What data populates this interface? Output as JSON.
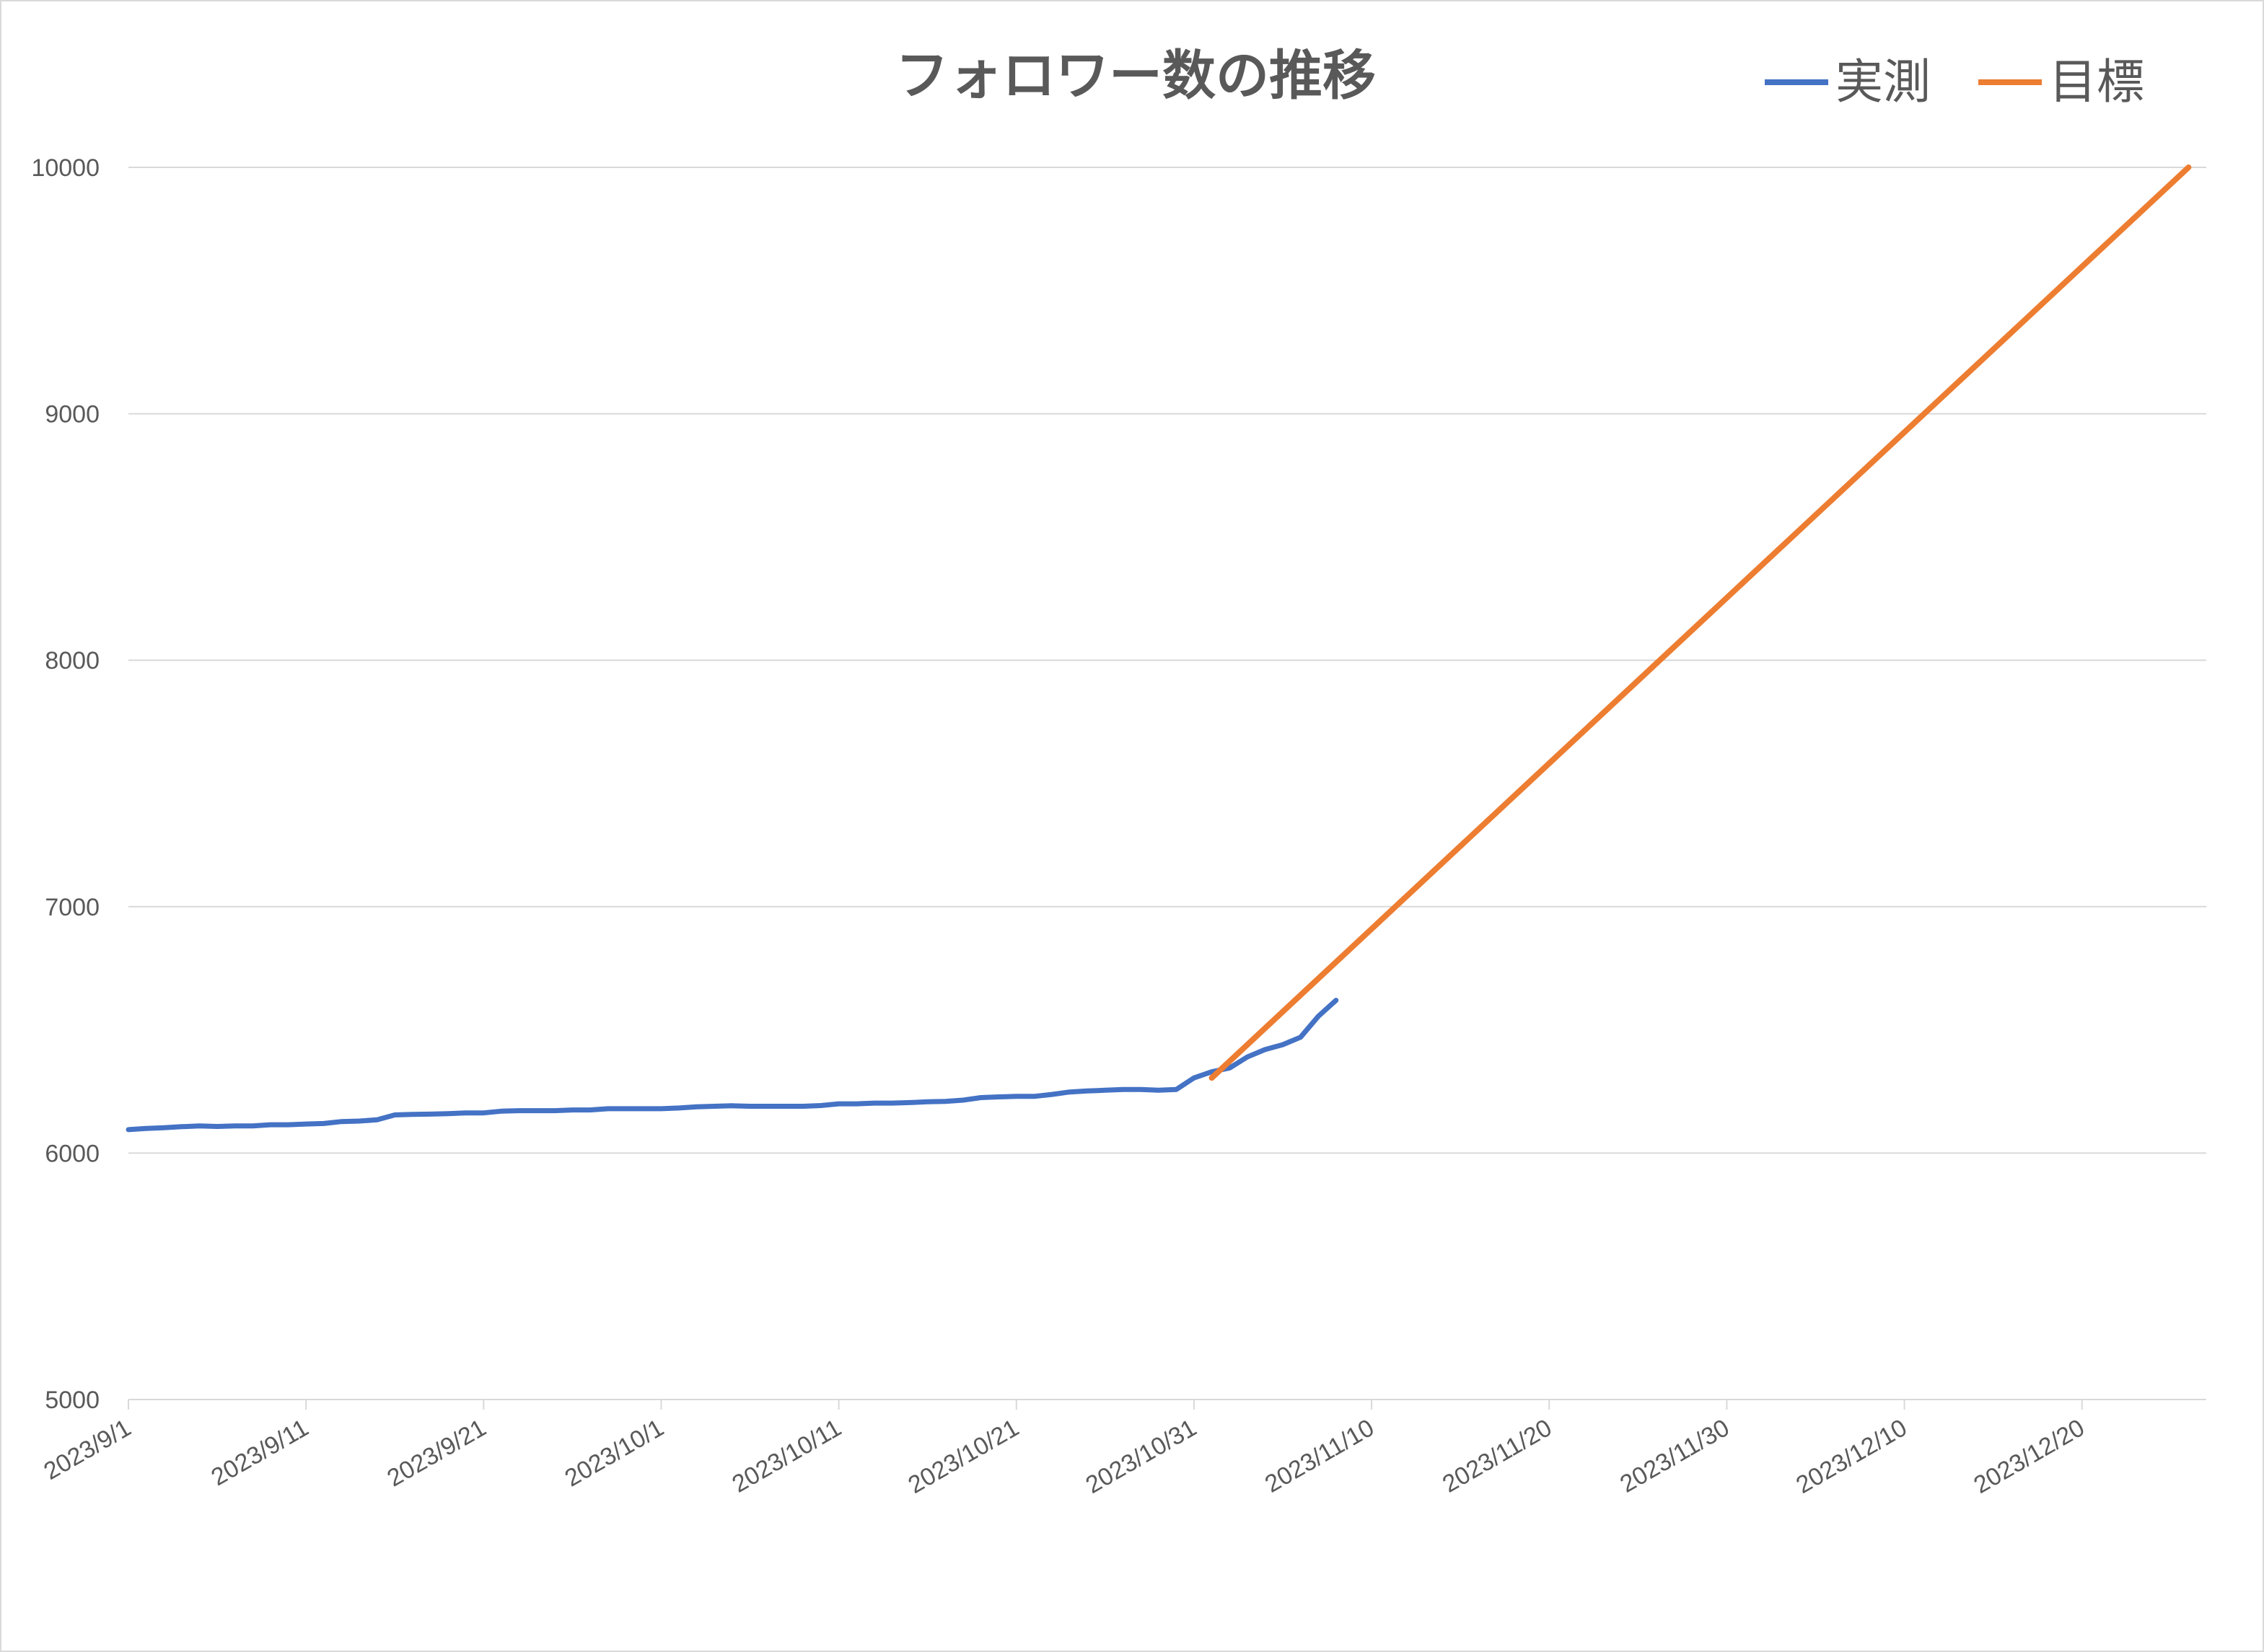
{
  "chart_data": {
    "type": "line",
    "title": "フォロワー数の推移",
    "xlabel": "",
    "ylabel": "",
    "ylim": [
      5000,
      10000
    ],
    "yticks": [
      5000,
      6000,
      7000,
      8000,
      9000,
      10000
    ],
    "xlim": [
      "2023/9/1",
      "2023/12/27"
    ],
    "xticks": [
      "2023/9/1",
      "2023/9/11",
      "2023/9/21",
      "2023/10/1",
      "2023/10/11",
      "2023/10/21",
      "2023/10/31",
      "2023/11/10",
      "2023/11/20",
      "2023/11/30",
      "2023/12/10",
      "2023/12/20"
    ],
    "grid": "horizontal",
    "legend_position": "top-right",
    "series": [
      {
        "name": "実測",
        "color": "#4472C4",
        "points": [
          [
            "2023/9/1",
            6095
          ],
          [
            "2023/9/2",
            6100
          ],
          [
            "2023/9/3",
            6103
          ],
          [
            "2023/9/4",
            6107
          ],
          [
            "2023/9/5",
            6110
          ],
          [
            "2023/9/6",
            6108
          ],
          [
            "2023/9/7",
            6110
          ],
          [
            "2023/9/8",
            6110
          ],
          [
            "2023/9/9",
            6115
          ],
          [
            "2023/9/10",
            6115
          ],
          [
            "2023/9/11",
            6118
          ],
          [
            "2023/9/12",
            6120
          ],
          [
            "2023/9/13",
            6128
          ],
          [
            "2023/9/14",
            6130
          ],
          [
            "2023/9/15",
            6135
          ],
          [
            "2023/9/16",
            6155
          ],
          [
            "2023/9/17",
            6157
          ],
          [
            "2023/9/18",
            6158
          ],
          [
            "2023/9/19",
            6160
          ],
          [
            "2023/9/20",
            6163
          ],
          [
            "2023/9/21",
            6163
          ],
          [
            "2023/9/22",
            6170
          ],
          [
            "2023/9/23",
            6172
          ],
          [
            "2023/9/24",
            6172
          ],
          [
            "2023/9/25",
            6172
          ],
          [
            "2023/9/26",
            6175
          ],
          [
            "2023/9/27",
            6175
          ],
          [
            "2023/9/28",
            6180
          ],
          [
            "2023/9/29",
            6180
          ],
          [
            "2023/9/30",
            6180
          ],
          [
            "2023/10/1",
            6180
          ],
          [
            "2023/10/2",
            6183
          ],
          [
            "2023/10/3",
            6188
          ],
          [
            "2023/10/4",
            6190
          ],
          [
            "2023/10/5",
            6192
          ],
          [
            "2023/10/6",
            6190
          ],
          [
            "2023/10/7",
            6190
          ],
          [
            "2023/10/8",
            6190
          ],
          [
            "2023/10/9",
            6190
          ],
          [
            "2023/10/10",
            6193
          ],
          [
            "2023/10/11",
            6200
          ],
          [
            "2023/10/12",
            6200
          ],
          [
            "2023/10/13",
            6203
          ],
          [
            "2023/10/14",
            6203
          ],
          [
            "2023/10/15",
            6205
          ],
          [
            "2023/10/16",
            6208
          ],
          [
            "2023/10/17",
            6210
          ],
          [
            "2023/10/18",
            6215
          ],
          [
            "2023/10/19",
            6225
          ],
          [
            "2023/10/20",
            6228
          ],
          [
            "2023/10/21",
            6230
          ],
          [
            "2023/10/22",
            6230
          ],
          [
            "2023/10/23",
            6238
          ],
          [
            "2023/10/24",
            6248
          ],
          [
            "2023/10/25",
            6252
          ],
          [
            "2023/10/26",
            6255
          ],
          [
            "2023/10/27",
            6258
          ],
          [
            "2023/10/28",
            6258
          ],
          [
            "2023/10/29",
            6255
          ],
          [
            "2023/10/30",
            6258
          ],
          [
            "2023/10/31",
            6305
          ],
          [
            "2023/11/1",
            6330
          ],
          [
            "2023/11/2",
            6345
          ],
          [
            "2023/11/3",
            6390
          ],
          [
            "2023/11/4",
            6420
          ],
          [
            "2023/11/5",
            6440
          ],
          [
            "2023/11/6",
            6470
          ],
          [
            "2023/11/7",
            6555
          ],
          [
            "2023/11/8",
            6620
          ]
        ]
      },
      {
        "name": "目標",
        "color": "#ED7D31",
        "points": [
          [
            "2023/11/1",
            6305
          ],
          [
            "2023/12/26",
            10000
          ]
        ]
      }
    ]
  }
}
